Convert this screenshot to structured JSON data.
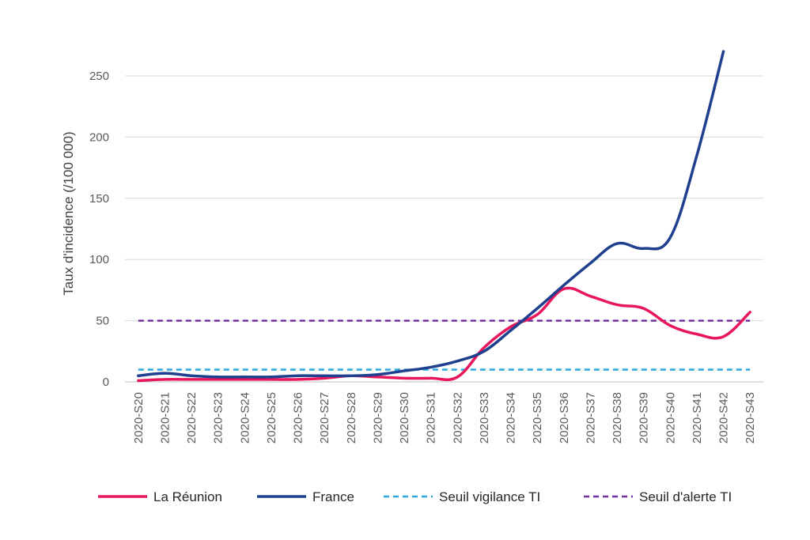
{
  "chart_data": {
    "type": "line",
    "ylabel": "Taux d'incidence (/100 000)",
    "xlabel": "",
    "ylim": [
      0,
      250
    ],
    "yticks": [
      0,
      50,
      100,
      150,
      200,
      250
    ],
    "grid": true,
    "legend_position": "bottom",
    "categories": [
      "2020-S20",
      "2020-S21",
      "2020-S22",
      "2020-S23",
      "2020-S24",
      "2020-S25",
      "2020-S26",
      "2020-S27",
      "2020-S28",
      "2020-S29",
      "2020-S30",
      "2020-S31",
      "2020-S32",
      "2020-S33",
      "2020-S34",
      "2020-S35",
      "2020-S36",
      "2020-S37",
      "2020-S38",
      "2020-S39",
      "2020-S40",
      "2020-S41",
      "2020-S42",
      "2020-S43"
    ],
    "series": [
      {
        "name": "La Réunion",
        "color": "#e8175d",
        "dash": false,
        "values": [
          1,
          2,
          2,
          2,
          2,
          2,
          2,
          3,
          5,
          4,
          3,
          3,
          4,
          28,
          45,
          55,
          76,
          70,
          63,
          60,
          46,
          39,
          37,
          57
        ]
      },
      {
        "name": "France",
        "color": "#1f3f8f",
        "dash": false,
        "values": [
          5,
          7,
          5,
          4,
          4,
          4,
          5,
          5,
          5,
          6,
          9,
          12,
          17,
          25,
          42,
          60,
          79,
          97,
          113,
          109,
          118,
          185,
          270,
          null
        ]
      },
      {
        "name": "Seuil vigilance TI",
        "color": "#2aa8e0",
        "dash": true,
        "values": [
          10,
          10,
          10,
          10,
          10,
          10,
          10,
          10,
          10,
          10,
          10,
          10,
          10,
          10,
          10,
          10,
          10,
          10,
          10,
          10,
          10,
          10,
          10,
          10
        ]
      },
      {
        "name": "Seuil d'alerte TI",
        "color": "#7030a0",
        "dash": true,
        "values": [
          50,
          50,
          50,
          50,
          50,
          50,
          50,
          50,
          50,
          50,
          50,
          50,
          50,
          50,
          50,
          50,
          50,
          50,
          50,
          50,
          50,
          50,
          50,
          50
        ]
      }
    ]
  }
}
